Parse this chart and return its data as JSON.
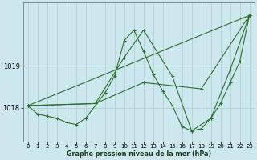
{
  "background_color": "#cce8ee",
  "grid_color": "#aacccc",
  "line_color": "#2d6e2d",
  "title": "Graphe pression niveau de la mer (hPa)",
  "xlim": [
    -0.5,
    23.5
  ],
  "ylim": [
    1017.2,
    1020.5
  ],
  "yticks": [
    1018,
    1019
  ],
  "xticks": [
    0,
    1,
    2,
    3,
    4,
    5,
    6,
    7,
    8,
    9,
    10,
    11,
    12,
    13,
    14,
    15,
    16,
    17,
    18,
    19,
    20,
    21,
    22,
    23
  ],
  "series": [
    {
      "x": [
        0,
        1,
        2,
        3,
        4,
        5,
        6,
        7,
        8,
        9,
        10,
        11,
        12,
        13,
        14,
        15,
        16,
        17,
        18,
        19,
        20,
        21,
        22,
        23
      ],
      "y": [
        1018.05,
        1017.85,
        1017.8,
        1017.75,
        1017.65,
        1017.6,
        1017.75,
        1018.05,
        1018.35,
        1018.75,
        1019.6,
        1019.85,
        1019.35,
        1018.8,
        1018.4,
        1018.05,
        1017.55,
        1017.45,
        1017.5,
        1017.75,
        1018.1,
        1018.6,
        1019.1,
        1020.2
      ]
    },
    {
      "x": [
        0,
        23
      ],
      "y": [
        1018.05,
        1020.2
      ]
    },
    {
      "x": [
        0,
        7,
        12,
        18,
        23
      ],
      "y": [
        1018.05,
        1018.1,
        1018.6,
        1018.45,
        1020.2
      ]
    },
    {
      "x": [
        0,
        7,
        10,
        12,
        15,
        17,
        19,
        21,
        23
      ],
      "y": [
        1018.05,
        1018.1,
        1019.2,
        1019.85,
        1018.75,
        1017.45,
        1017.75,
        1018.9,
        1020.2
      ]
    }
  ]
}
